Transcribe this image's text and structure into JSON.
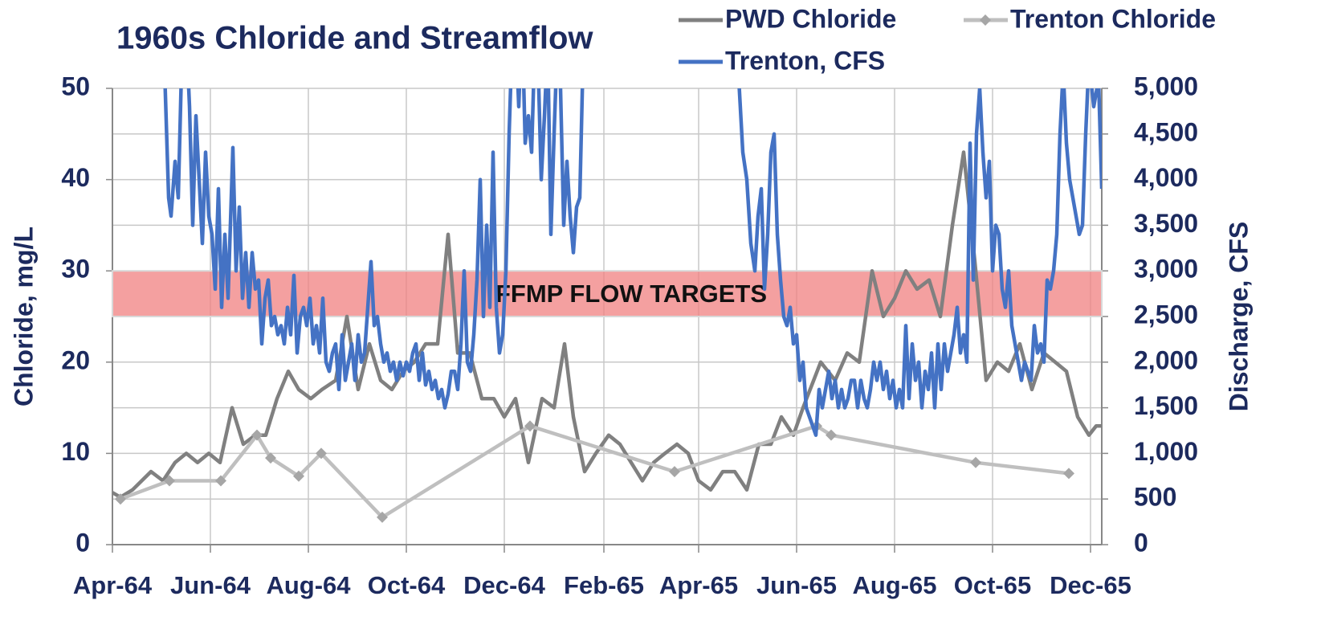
{
  "chart_data": {
    "type": "line",
    "title": "1960s  Chloride and Streamflow",
    "ylabel": "Chloride, mg/L",
    "y2label": "Discharge, CFS",
    "legend": "top-right",
    "grid": true,
    "xlim": [
      0,
      616
    ],
    "xticks": [
      {
        "value": 0,
        "label": "Apr-64"
      },
      {
        "value": 61,
        "label": "Jun-64"
      },
      {
        "value": 122,
        "label": "Aug-64"
      },
      {
        "value": 183,
        "label": "Oct-64"
      },
      {
        "value": 244,
        "label": "Dec-64"
      },
      {
        "value": 306,
        "label": "Feb-65"
      },
      {
        "value": 365,
        "label": "Apr-65"
      },
      {
        "value": 426,
        "label": "Jun-65"
      },
      {
        "value": 487,
        "label": "Aug-65"
      },
      {
        "value": 548,
        "label": "Oct-65"
      },
      {
        "value": 609,
        "label": "Dec-65"
      }
    ],
    "ylim": [
      0,
      50
    ],
    "yticks": [
      0,
      10,
      20,
      30,
      40,
      50
    ],
    "y2lim": [
      0,
      5000
    ],
    "y2ticks": [
      0,
      500,
      {
        "value": 1000,
        "label": "1,000"
      },
      {
        "value": 1500,
        "label": "1,500"
      },
      {
        "value": 2000,
        "label": "2,000"
      },
      {
        "value": 2500,
        "label": "2,500"
      },
      {
        "value": 3000,
        "label": "3,000"
      },
      {
        "value": 3500,
        "label": "3,500"
      },
      {
        "value": 4000,
        "label": "4,000"
      },
      {
        "value": 4500,
        "label": "4,500"
      },
      {
        "value": 5000,
        "label": "5,000"
      }
    ],
    "band": {
      "label": "FFMP FLOW TARGETS",
      "y2range": [
        2500,
        3000
      ],
      "color": "#f08080"
    },
    "series": [
      {
        "name": "PWD Chloride",
        "color": "#808080",
        "x": [
          0,
          5,
          12.5,
          24,
          31.5,
          39,
          46,
          53,
          60,
          67,
          74.5,
          81.5,
          89,
          95.5,
          102.5,
          109.5,
          116,
          123.5,
          130.5,
          139,
          146,
          153,
          160,
          167,
          174,
          181,
          188,
          195,
          202.5,
          209,
          215,
          222.5,
          230,
          237.5,
          244,
          251,
          259,
          267.5,
          275,
          281.5,
          287,
          294,
          301,
          309,
          316,
          323,
          330,
          337,
          344,
          351.5,
          358.5,
          365,
          372.5,
          380,
          387.5,
          395,
          402.5,
          410,
          416.5,
          424,
          430,
          441,
          450,
          457.5,
          465,
          473,
          480,
          487,
          494,
          501,
          508.5,
          515.5,
          523,
          530,
          537,
          544,
          551,
          558,
          565,
          572.5,
          580,
          587,
          594,
          601,
          608,
          612.5,
          616
        ],
        "values": [
          5.7,
          5.2,
          6,
          8,
          7,
          9,
          10,
          9,
          10,
          9,
          15,
          11,
          12,
          12,
          16,
          19,
          17,
          16,
          17,
          18,
          25,
          17,
          22,
          18,
          17,
          19,
          20,
          22,
          22,
          34,
          21,
          21,
          16,
          16,
          14,
          16,
          9,
          16,
          15,
          22,
          14,
          8,
          10,
          12,
          11,
          9,
          7,
          9,
          10,
          11,
          10,
          7,
          6,
          8,
          8,
          6,
          11,
          11,
          14,
          12,
          15,
          20,
          18,
          21,
          20,
          30,
          25,
          27,
          30,
          28,
          29,
          25,
          35,
          43,
          31,
          18,
          20,
          19,
          22,
          17,
          21,
          20,
          19,
          14,
          12,
          13,
          13
        ]
      },
      {
        "name": "Trenton Chloride",
        "color": "#bfbfbf",
        "marker": "diamond",
        "x": [
          5,
          35.5,
          67.5,
          90,
          98.5,
          116,
          130,
          168,
          260,
          350,
          438.5,
          447.5,
          537.5,
          595.5
        ],
        "values": [
          5,
          7,
          7,
          12,
          9.5,
          7.5,
          10,
          3,
          13,
          8,
          13,
          12,
          9,
          7.8
        ]
      },
      {
        "name": "Trenton, CFS",
        "color": "#4472c4",
        "axis": "y2",
        "x": [
          32.5,
          35,
          36.5,
          39,
          41,
          43,
          46,
          48,
          50,
          52,
          54,
          56,
          58,
          60,
          62,
          64,
          66,
          68,
          70,
          72,
          75,
          77,
          79,
          81,
          83,
          85,
          87,
          89,
          91,
          93,
          95,
          97,
          99,
          101,
          103,
          105,
          107,
          109,
          111,
          113,
          115,
          117,
          119,
          121,
          123,
          125,
          127,
          129,
          131,
          133,
          135,
          137,
          139,
          141,
          143,
          145,
          147,
          149,
          151,
          153,
          155,
          157,
          159,
          161,
          163,
          165,
          167,
          169,
          171,
          173,
          175,
          177,
          179,
          181,
          183,
          185,
          187,
          189,
          191,
          193,
          195,
          197,
          199,
          201,
          203,
          205,
          207,
          209,
          211,
          213,
          215,
          217,
          219,
          221,
          223,
          225,
          227,
          229,
          231,
          233,
          235,
          237,
          239,
          241,
          243,
          245,
          247,
          249,
          251,
          253,
          255,
          257,
          259,
          261,
          263,
          265,
          267,
          269,
          271,
          273,
          275,
          277,
          279,
          281,
          283,
          285,
          287,
          289,
          291,
          293,
          null,
          390,
          392.5,
          395,
          397.5,
          400,
          402,
          404,
          406,
          408,
          410,
          412,
          414,
          416,
          418,
          420,
          422,
          424,
          426,
          428,
          430,
          432,
          434,
          436,
          438,
          440,
          442,
          444,
          446,
          448,
          450,
          452,
          454,
          456,
          458,
          460,
          462,
          464,
          466,
          468,
          470,
          472,
          474,
          476,
          478,
          480,
          482,
          484,
          486,
          488,
          490,
          492,
          494,
          496,
          498,
          500,
          502,
          504,
          506,
          508,
          510,
          512,
          514,
          516,
          518,
          520,
          522,
          524,
          526,
          528,
          530,
          532,
          534,
          536,
          538,
          540,
          542,
          544,
          546,
          548,
          550,
          552,
          554,
          556,
          558,
          560,
          562,
          564,
          566,
          568,
          570,
          572,
          574,
          576,
          578,
          580,
          582,
          584,
          586,
          588,
          590,
          592,
          594,
          596,
          598,
          600,
          602,
          604,
          606,
          608,
          611,
          614,
          616
        ],
        "values": [
          5200,
          3800,
          3600,
          4200,
          3800,
          5200,
          5600,
          4800,
          3500,
          4700,
          4000,
          3300,
          4300,
          3600,
          3400,
          2800,
          3900,
          2600,
          3400,
          2700,
          4350,
          3000,
          3700,
          2700,
          3200,
          2600,
          3200,
          2800,
          2900,
          2200,
          2700,
          2900,
          2400,
          2500,
          2300,
          2400,
          2200,
          2600,
          2300,
          2950,
          2100,
          2500,
          2600,
          2400,
          2700,
          2200,
          2400,
          2100,
          2700,
          2000,
          1900,
          2100,
          2200,
          1700,
          2300,
          1800,
          2000,
          2200,
          1800,
          2300,
          2000,
          2100,
          2600,
          3100,
          2400,
          2500,
          2200,
          2000,
          2100,
          1900,
          2000,
          1800,
          2000,
          1850,
          2000,
          1900,
          2100,
          2200,
          1800,
          2100,
          1750,
          1900,
          1700,
          1800,
          1600,
          1700,
          1500,
          1650,
          1900,
          1900,
          1700,
          2200,
          3000,
          2000,
          1900,
          2300,
          2900,
          4000,
          2500,
          3500,
          2600,
          4300,
          2600,
          2100,
          2300,
          3000,
          4500,
          5600,
          5700,
          4800,
          5800,
          4400,
          4700,
          4300,
          5500,
          5300,
          4000,
          4700,
          5500,
          3400,
          4500,
          5500,
          5000,
          3500,
          4200,
          3600,
          3200,
          3700,
          3800,
          5300,
          null,
          5100,
          4300,
          4000,
          3300,
          3000,
          3600,
          3900,
          2800,
          3400,
          4300,
          4500,
          3400,
          2900,
          2500,
          2400,
          2600,
          2200,
          2300,
          1800,
          2000,
          1500,
          1400,
          1300,
          1200,
          1700,
          1500,
          1700,
          1900,
          1600,
          1800,
          1500,
          1700,
          1500,
          1600,
          1800,
          1800,
          1500,
          1800,
          1600,
          1500,
          1700,
          2000,
          1800,
          2000,
          1700,
          1900,
          1600,
          1800,
          1500,
          1700,
          1500,
          2400,
          1600,
          2200,
          1800,
          2000,
          1500,
          1900,
          1700,
          2100,
          1500,
          2200,
          1700,
          2200,
          1900,
          2100,
          2300,
          2600,
          2100,
          2300,
          2000,
          4400,
          2900,
          4500,
          5000,
          4300,
          3800,
          4200,
          3000,
          3500,
          3400,
          2800,
          2600,
          3000,
          2400,
          2200,
          2000,
          1800,
          2000,
          1900,
          1800,
          2400,
          2100,
          2200,
          2000,
          2900,
          2800,
          3000,
          3400,
          4500,
          5200,
          4400,
          4000,
          3800,
          3600,
          3400,
          3500,
          4500,
          5300,
          4800,
          5100,
          3900
        ]
      }
    ]
  }
}
